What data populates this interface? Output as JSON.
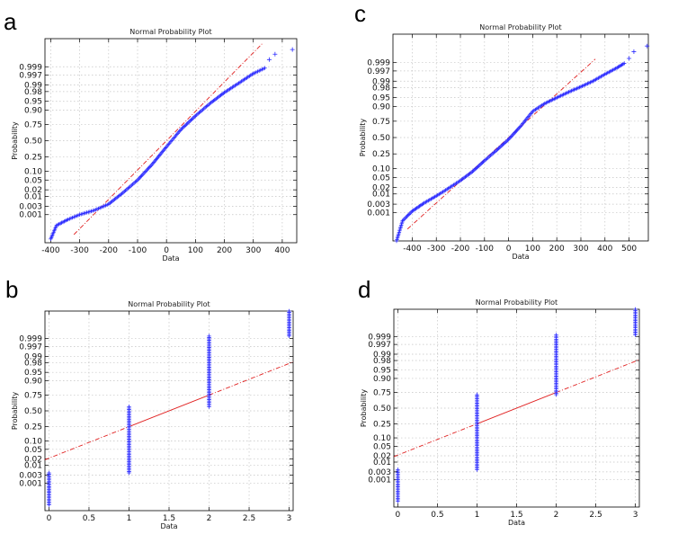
{
  "chart_data": [
    {
      "panel": "a",
      "type": "scatter",
      "title": "Normal Probability Plot",
      "xlabel": "Data",
      "ylabel": "Probability",
      "xlim": [
        -420,
        450
      ],
      "xticks": [
        -400,
        -300,
        -200,
        -100,
        0,
        100,
        200,
        300,
        400
      ],
      "yticks": [
        0.001,
        0.003,
        0.01,
        0.02,
        0.05,
        0.1,
        0.25,
        0.5,
        0.75,
        0.9,
        0.95,
        0.98,
        0.99,
        0.997,
        0.999
      ],
      "ytick_labels": [
        "0.001",
        "0.003",
        "0.01",
        "0.02",
        "0.05",
        "0.10",
        "0.25",
        "0.50",
        "0.75",
        "0.90",
        "0.95",
        "0.98",
        "0.99",
        "0.997",
        "0.999"
      ],
      "grid": true,
      "reference_line": {
        "q1": -55,
        "q3": 55,
        "x_from": -320,
        "x_to": 330
      },
      "quantile_curve": [
        [
          -400,
          2e-05
        ],
        [
          -380,
          0.0002
        ],
        [
          -340,
          0.0005
        ],
        [
          -300,
          0.001
        ],
        [
          -250,
          0.0018
        ],
        [
          -200,
          0.004
        ],
        [
          -150,
          0.015
        ],
        [
          -100,
          0.05
        ],
        [
          -50,
          0.16
        ],
        [
          0,
          0.4
        ],
        [
          50,
          0.68
        ],
        [
          100,
          0.85
        ],
        [
          150,
          0.94
        ],
        [
          200,
          0.978
        ],
        [
          250,
          0.992
        ],
        [
          300,
          0.9975
        ],
        [
          340,
          0.9988
        ]
      ],
      "outliers": [
        [
          355,
          0.99965
        ],
        [
          375,
          0.99985
        ],
        [
          435,
          0.99993
        ]
      ]
    },
    {
      "panel": "b",
      "type": "scatter",
      "title": "Normal Probability Plot",
      "xlabel": "Data",
      "ylabel": "Probability",
      "xlim": [
        -0.05,
        3.05
      ],
      "xticks": [
        0,
        0.5,
        1,
        1.5,
        2,
        2.5,
        3
      ],
      "yticks": [
        0.001,
        0.003,
        0.01,
        0.02,
        0.05,
        0.1,
        0.25,
        0.5,
        0.75,
        0.9,
        0.95,
        0.98,
        0.99,
        0.997,
        0.999
      ],
      "ytick_labels": [
        "0.001",
        "0.003",
        "0.01",
        "0.02",
        "0.05",
        "0.10",
        "0.25",
        "0.50",
        "0.75",
        "0.90",
        "0.95",
        "0.98",
        "0.99",
        "0.997",
        "0.999"
      ],
      "grid": true,
      "reference_line": {
        "q1": 1,
        "q3": 2
      },
      "columns": [
        {
          "x": 0,
          "p_from": 3e-05,
          "p_to": 0.004
        },
        {
          "x": 1,
          "p_from": 0.004,
          "p_to": 0.57
        },
        {
          "x": 2,
          "p_from": 0.57,
          "p_to": 0.9993
        },
        {
          "x": 3,
          "p_from": 0.9993,
          "p_to": 0.99999
        }
      ]
    },
    {
      "panel": "c",
      "type": "scatter",
      "title": "Normal Probability Plot",
      "xlabel": "Data",
      "ylabel": "Probability",
      "xlim": [
        -480,
        580
      ],
      "xticks": [
        -400,
        -300,
        -200,
        -100,
        0,
        100,
        200,
        300,
        400,
        500
      ],
      "yticks": [
        0.001,
        0.003,
        0.01,
        0.02,
        0.05,
        0.1,
        0.25,
        0.5,
        0.75,
        0.9,
        0.95,
        0.98,
        0.99,
        0.997,
        0.999
      ],
      "ytick_labels": [
        "0.001",
        "0.003",
        "0.01",
        "0.02",
        "0.05",
        "0.10",
        "0.25",
        "0.50",
        "0.75",
        "0.90",
        "0.95",
        "0.98",
        "0.99",
        "0.997",
        "0.999"
      ],
      "grid": true,
      "reference_line": {
        "q1": -75,
        "q3": 75,
        "x_from": -420,
        "x_to": 360
      },
      "quantile_curve": [
        [
          -465,
          1e-05
        ],
        [
          -440,
          0.0003
        ],
        [
          -400,
          0.0012
        ],
        [
          -350,
          0.0035
        ],
        [
          -300,
          0.008
        ],
        [
          -250,
          0.018
        ],
        [
          -200,
          0.038
        ],
        [
          -150,
          0.08
        ],
        [
          -100,
          0.17
        ],
        [
          -50,
          0.3
        ],
        [
          0,
          0.47
        ],
        [
          50,
          0.68
        ],
        [
          100,
          0.86
        ],
        [
          150,
          0.92
        ],
        [
          200,
          0.95
        ],
        [
          250,
          0.97
        ],
        [
          300,
          0.982
        ],
        [
          350,
          0.99
        ],
        [
          400,
          0.9955
        ],
        [
          450,
          0.998
        ],
        [
          480,
          0.9989
        ]
      ],
      "outliers": [
        [
          500,
          0.99945
        ],
        [
          520,
          0.9998
        ],
        [
          575,
          0.99992
        ]
      ]
    },
    {
      "panel": "d",
      "type": "scatter",
      "title": "Normal Probability Plot",
      "xlabel": "Data",
      "ylabel": "Probability",
      "xlim": [
        -0.05,
        3.05
      ],
      "xticks": [
        0,
        0.5,
        1,
        1.5,
        2,
        2.5,
        3
      ],
      "yticks": [
        0.001,
        0.003,
        0.01,
        0.02,
        0.05,
        0.1,
        0.25,
        0.5,
        0.75,
        0.9,
        0.95,
        0.98,
        0.99,
        0.997,
        0.999
      ],
      "ytick_labels": [
        "0.001",
        "0.003",
        "0.01",
        "0.02",
        "0.05",
        "0.10",
        "0.25",
        "0.50",
        "0.75",
        "0.90",
        "0.95",
        "0.98",
        "0.99",
        "0.997",
        "0.999"
      ],
      "grid": true,
      "reference_line": {
        "q1": 1,
        "q3": 2
      },
      "columns": [
        {
          "x": 0,
          "p_from": 3e-05,
          "p_to": 0.004
        },
        {
          "x": 1,
          "p_from": 0.004,
          "p_to": 0.72
        },
        {
          "x": 2,
          "p_from": 0.72,
          "p_to": 0.9992
        },
        {
          "x": 3,
          "p_from": 0.9992,
          "p_to": 0.99999
        }
      ]
    }
  ]
}
